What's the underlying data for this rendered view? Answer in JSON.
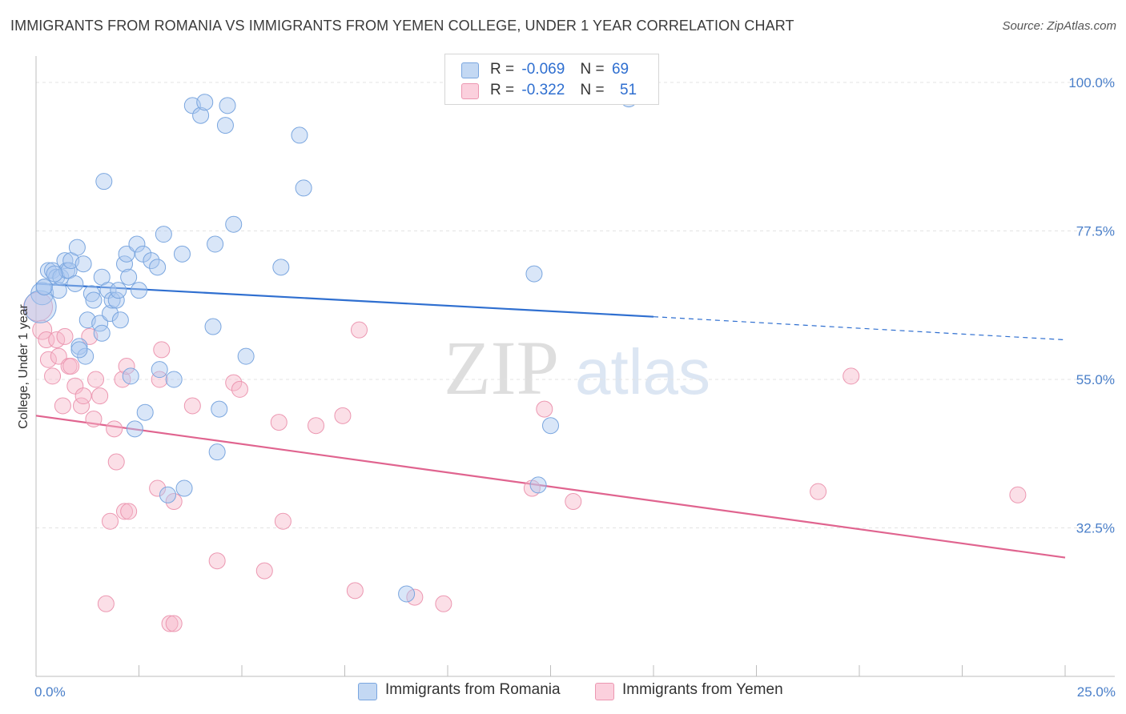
{
  "title": "IMMIGRANTS FROM ROMANIA VS IMMIGRANTS FROM YEMEN COLLEGE, UNDER 1 YEAR CORRELATION CHART",
  "source": "Source: ZipAtlas.com",
  "watermark": {
    "zip": "ZIP",
    "atlas": "atlas"
  },
  "legend": {
    "r_label": "R =",
    "n_label": "N =",
    "romania": {
      "r": "-0.069",
      "n": "69"
    },
    "yemen": {
      "r": "-0.322",
      "n": "51"
    }
  },
  "chart_data": {
    "type": "scatter",
    "title": "IMMIGRANTS FROM ROMANIA VS IMMIGRANTS FROM YEMEN COLLEGE, UNDER 1 YEAR CORRELATION CHART",
    "xlabel": "",
    "ylabel": "College, Under 1 year",
    "xlim": [
      0,
      25
    ],
    "ylim": [
      10,
      104
    ],
    "x_tick_labels": [
      "0.0%",
      "25.0%"
    ],
    "y_ticks": [
      32.5,
      55.0,
      77.5,
      100.0
    ],
    "y_tick_labels": [
      "32.5%",
      "55.0%",
      "77.5%",
      "100.0%"
    ],
    "grid": true,
    "legend_position": "bottom-center",
    "colors": {
      "romania_fill": "#aac8ef",
      "romania_stroke": "#7aa6df",
      "romania_line": "#2f6fd0",
      "yemen_fill": "#f6b8ca",
      "yemen_stroke": "#ec97b1",
      "yemen_line": "#e0648f"
    },
    "series": [
      {
        "name": "Immigrants from Romania",
        "trend": {
          "x": [
            0,
            15
          ],
          "y": [
            69.5,
            64.5
          ],
          "dashed_to_x": 25,
          "dashed_to_y": 61.0
        },
        "points": [
          [
            0.15,
            68.0,
            14
          ],
          [
            0.1,
            66.0,
            20
          ],
          [
            0.2,
            69.0,
            10
          ],
          [
            0.3,
            71.5,
            10
          ],
          [
            0.4,
            71.5,
            10
          ],
          [
            0.5,
            70.5,
            10
          ],
          [
            0.55,
            68.5,
            10
          ],
          [
            0.6,
            70.5,
            10
          ],
          [
            0.7,
            73.0,
            10
          ],
          [
            0.75,
            71.5,
            10
          ],
          [
            0.8,
            71.5,
            10
          ],
          [
            0.85,
            73.0,
            10
          ],
          [
            0.95,
            69.5,
            10
          ],
          [
            1.0,
            75.0,
            10
          ],
          [
            1.05,
            60.0,
            10
          ],
          [
            1.15,
            72.5,
            10
          ],
          [
            1.2,
            58.5,
            10
          ],
          [
            1.25,
            64.0,
            10
          ],
          [
            1.35,
            68.0,
            10
          ],
          [
            1.4,
            67.0,
            10
          ],
          [
            1.55,
            63.5,
            10
          ],
          [
            1.6,
            62.0,
            10
          ],
          [
            1.6,
            70.5,
            10
          ],
          [
            1.65,
            85.0,
            10
          ],
          [
            1.75,
            68.5,
            10
          ],
          [
            1.8,
            65.0,
            10
          ],
          [
            1.85,
            67.0,
            10
          ],
          [
            1.95,
            67.0,
            10
          ],
          [
            2.0,
            68.5,
            10
          ],
          [
            2.05,
            64.0,
            10
          ],
          [
            2.15,
            72.5,
            10
          ],
          [
            2.2,
            74.0,
            10
          ],
          [
            2.25,
            70.5,
            10
          ],
          [
            2.3,
            55.5,
            10
          ],
          [
            2.4,
            47.5,
            10
          ],
          [
            2.45,
            75.5,
            10
          ],
          [
            2.5,
            68.5,
            10
          ],
          [
            2.6,
            74.0,
            10
          ],
          [
            2.65,
            50.0,
            10
          ],
          [
            2.8,
            73.0,
            10
          ],
          [
            2.95,
            72.0,
            10
          ],
          [
            3.0,
            56.5,
            10
          ],
          [
            3.1,
            77.0,
            10
          ],
          [
            3.2,
            37.5,
            10
          ],
          [
            3.35,
            55.0,
            10
          ],
          [
            3.55,
            74.0,
            10
          ],
          [
            3.6,
            38.5,
            10
          ],
          [
            3.8,
            96.5,
            10
          ],
          [
            4.0,
            95.0,
            10
          ],
          [
            4.1,
            97.0,
            10
          ],
          [
            4.3,
            63.0,
            10
          ],
          [
            4.35,
            75.5,
            10
          ],
          [
            4.4,
            44.0,
            10
          ],
          [
            4.45,
            50.5,
            10
          ],
          [
            4.6,
            93.5,
            10
          ],
          [
            4.65,
            96.5,
            10
          ],
          [
            4.8,
            78.5,
            10
          ],
          [
            5.1,
            58.5,
            10
          ],
          [
            5.95,
            72.0,
            10
          ],
          [
            6.4,
            92.0,
            10
          ],
          [
            6.5,
            84.0,
            10
          ],
          [
            9.0,
            22.5,
            10
          ],
          [
            12.1,
            71.0,
            10
          ],
          [
            12.2,
            39.0,
            10
          ],
          [
            12.5,
            48.0,
            10
          ],
          [
            14.4,
            97.5,
            10
          ],
          [
            0.45,
            71.0,
            10
          ],
          [
            1.05,
            59.5,
            10
          ],
          [
            0.2,
            69.0,
            10
          ]
        ]
      },
      {
        "name": "Immigrants from Yemen",
        "trend": {
          "x": [
            0,
            25
          ],
          "y": [
            49.5,
            28.0
          ]
        },
        "points": [
          [
            0.05,
            66.0,
            18
          ],
          [
            0.15,
            62.5,
            12
          ],
          [
            0.25,
            61.0,
            10
          ],
          [
            0.3,
            58.0,
            10
          ],
          [
            0.4,
            55.5,
            10
          ],
          [
            0.5,
            61.0,
            10
          ],
          [
            0.55,
            58.5,
            10
          ],
          [
            0.65,
            51.0,
            10
          ],
          [
            0.7,
            61.5,
            10
          ],
          [
            0.8,
            57.0,
            10
          ],
          [
            0.85,
            57.0,
            10
          ],
          [
            0.95,
            54.0,
            10
          ],
          [
            1.1,
            51.0,
            10
          ],
          [
            1.15,
            52.5,
            10
          ],
          [
            1.3,
            61.5,
            10
          ],
          [
            1.4,
            49.0,
            10
          ],
          [
            1.45,
            55.0,
            10
          ],
          [
            1.55,
            52.5,
            10
          ],
          [
            1.7,
            21.0,
            10
          ],
          [
            1.8,
            33.5,
            10
          ],
          [
            1.9,
            47.5,
            10
          ],
          [
            1.95,
            42.5,
            10
          ],
          [
            2.1,
            55.0,
            10
          ],
          [
            2.15,
            35.0,
            10
          ],
          [
            2.2,
            57.0,
            10
          ],
          [
            2.25,
            35.0,
            10
          ],
          [
            2.95,
            38.5,
            10
          ],
          [
            3.0,
            55.0,
            10
          ],
          [
            3.05,
            59.5,
            10
          ],
          [
            3.25,
            18.0,
            10
          ],
          [
            3.35,
            18.0,
            10
          ],
          [
            3.35,
            36.5,
            10
          ],
          [
            3.8,
            51.0,
            10
          ],
          [
            4.4,
            27.5,
            10
          ],
          [
            4.8,
            54.5,
            10
          ],
          [
            4.95,
            53.5,
            10
          ],
          [
            5.55,
            26.0,
            10
          ],
          [
            5.9,
            48.5,
            10
          ],
          [
            6.0,
            33.5,
            10
          ],
          [
            6.8,
            48.0,
            10
          ],
          [
            7.45,
            49.5,
            10
          ],
          [
            7.75,
            23.0,
            10
          ],
          [
            7.85,
            62.5,
            10
          ],
          [
            9.2,
            22.0,
            10
          ],
          [
            9.9,
            21.0,
            10
          ],
          [
            12.05,
            38.5,
            10
          ],
          [
            12.35,
            50.5,
            10
          ],
          [
            13.05,
            36.5,
            10
          ],
          [
            19.0,
            38.0,
            10
          ],
          [
            19.8,
            55.5,
            10
          ],
          [
            23.85,
            37.5,
            10
          ]
        ]
      }
    ]
  },
  "bottom_legend": {
    "romania": "Immigrants from Romania",
    "yemen": "Immigrants from Yemen"
  }
}
